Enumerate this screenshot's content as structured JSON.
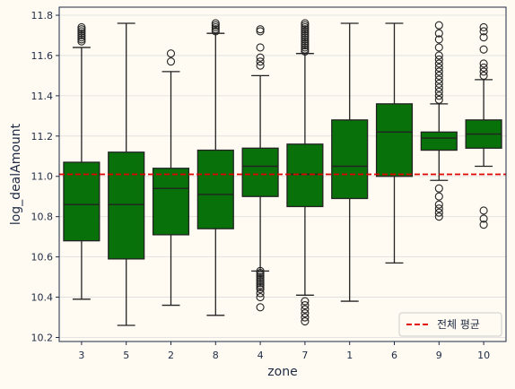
{
  "chart_data": {
    "type": "box",
    "xlabel": "zone",
    "ylabel": "log_dealAmount",
    "ylim": [
      10.18,
      11.84
    ],
    "yticks": [
      10.2,
      10.4,
      10.6,
      10.8,
      11.0,
      11.2,
      11.4,
      11.6,
      11.8
    ],
    "y_tick_labels": [
      "10.2",
      "10.4",
      "10.6",
      "10.8",
      "11.0",
      "11.2",
      "11.4",
      "11.6",
      "11.8"
    ],
    "grid": "horizontal",
    "box_color": "#097109",
    "edge_color": "#222222",
    "reference_line": {
      "label": "전체 평균",
      "value": 11.01,
      "color": "#e00000",
      "style": "dashed"
    },
    "legend_position": "lower right",
    "categories": [
      "3",
      "5",
      "2",
      "8",
      "4",
      "7",
      "1",
      "6",
      "9",
      "10"
    ],
    "boxes": [
      {
        "zone": "3",
        "whisker_low": 10.39,
        "q1": 10.68,
        "median": 10.86,
        "q3": 11.07,
        "whisker_high": 11.64,
        "outliers": [
          11.67,
          11.68,
          11.69,
          11.7,
          11.71,
          11.72,
          11.73,
          11.74
        ]
      },
      {
        "zone": "5",
        "whisker_low": 10.26,
        "q1": 10.59,
        "median": 10.86,
        "q3": 11.12,
        "whisker_high": 11.76,
        "outliers": []
      },
      {
        "zone": "2",
        "whisker_low": 10.36,
        "q1": 10.71,
        "median": 10.94,
        "q3": 11.04,
        "whisker_high": 11.52,
        "outliers": [
          11.57,
          11.61
        ]
      },
      {
        "zone": "8",
        "whisker_low": 10.31,
        "q1": 10.74,
        "median": 10.91,
        "q3": 11.13,
        "whisker_high": 11.71,
        "outliers": [
          11.72,
          11.73,
          11.74,
          11.75,
          11.76
        ]
      },
      {
        "zone": "4",
        "whisker_low": 10.53,
        "q1": 10.9,
        "median": 11.05,
        "q3": 11.14,
        "whisker_high": 11.5,
        "outliers": [
          10.35,
          10.4,
          10.42,
          10.44,
          10.45,
          10.46,
          10.47,
          10.48,
          10.49,
          10.5,
          10.51,
          10.52,
          10.53,
          11.55,
          11.57,
          11.59,
          11.64,
          11.72,
          11.73
        ]
      },
      {
        "zone": "7",
        "whisker_low": 10.41,
        "q1": 10.85,
        "median": 11.01,
        "q3": 11.16,
        "whisker_high": 11.61,
        "outliers": [
          10.28,
          10.3,
          10.32,
          10.34,
          10.36,
          10.38,
          11.62,
          11.63,
          11.64,
          11.65,
          11.66,
          11.67,
          11.68,
          11.69,
          11.7,
          11.71,
          11.72,
          11.73,
          11.74,
          11.75,
          11.76
        ]
      },
      {
        "zone": "1",
        "whisker_low": 10.38,
        "q1": 10.89,
        "median": 11.05,
        "q3": 11.28,
        "whisker_high": 11.76,
        "outliers": []
      },
      {
        "zone": "6",
        "whisker_low": 10.57,
        "q1": 11.0,
        "median": 11.22,
        "q3": 11.36,
        "whisker_high": 11.76,
        "outliers": []
      },
      {
        "zone": "9",
        "whisker_low": 10.98,
        "q1": 11.13,
        "median": 11.19,
        "q3": 11.22,
        "whisker_high": 11.36,
        "outliers": [
          10.8,
          10.82,
          10.84,
          10.86,
          10.9,
          10.94,
          11.38,
          11.4,
          11.42,
          11.44,
          11.46,
          11.48,
          11.5,
          11.52,
          11.54,
          11.56,
          11.58,
          11.6,
          11.64,
          11.68,
          11.71,
          11.75
        ]
      },
      {
        "zone": "10",
        "whisker_low": 11.05,
        "q1": 11.14,
        "median": 11.21,
        "q3": 11.28,
        "whisker_high": 11.48,
        "outliers": [
          10.76,
          10.79,
          10.83,
          11.5,
          11.52,
          11.54,
          11.56,
          11.63,
          11.69,
          11.72,
          11.74
        ]
      }
    ]
  }
}
